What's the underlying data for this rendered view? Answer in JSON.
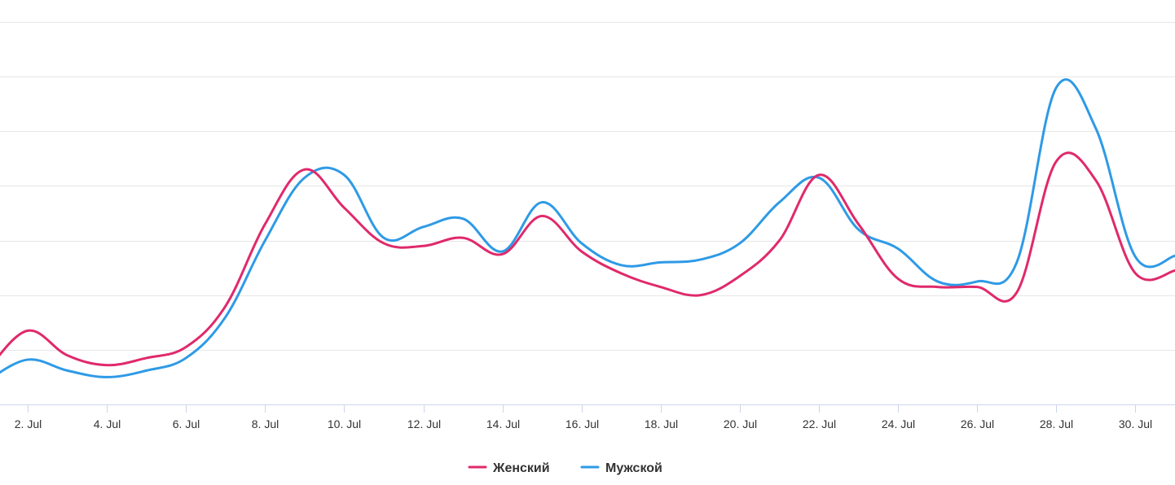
{
  "chart_data": {
    "type": "line",
    "x": [
      1,
      2,
      3,
      4,
      5,
      6,
      7,
      8,
      9,
      10,
      11,
      12,
      13,
      14,
      15,
      16,
      17,
      18,
      19,
      20,
      21,
      22,
      23,
      24,
      25,
      26,
      27,
      28,
      29,
      30,
      31
    ],
    "x_tick_labels": [
      "2. Jul",
      "4. Jul",
      "6. Jul",
      "8. Jul",
      "10. Jul",
      "12. Jul",
      "14. Jul",
      "16. Jul",
      "18. Jul",
      "20. Jul",
      "22. Jul",
      "24. Jul",
      "26. Jul",
      "28. Jul",
      "30. Jul"
    ],
    "x_tick_days": [
      2,
      4,
      6,
      8,
      10,
      12,
      14,
      16,
      18,
      20,
      22,
      24,
      26,
      28,
      30
    ],
    "xlim": [
      1.3,
      31.0
    ],
    "ylim": [
      0,
      7
    ],
    "grid_y": [
      0,
      1,
      2,
      3,
      4,
      5,
      6,
      7
    ],
    "series": [
      {
        "name": "Женский",
        "color": "#e0296b",
        "values": [
          0.65,
          1.35,
          0.9,
          0.72,
          0.85,
          1.05,
          1.8,
          3.3,
          4.3,
          3.6,
          2.95,
          2.9,
          3.05,
          2.75,
          3.45,
          2.8,
          2.4,
          2.15,
          2.0,
          2.35,
          3.0,
          4.2,
          3.3,
          2.3,
          2.15,
          2.15,
          2.05,
          4.45,
          4.1,
          2.4,
          2.45
        ]
      },
      {
        "name": "Мужской",
        "color": "#2e9ae6",
        "values": [
          0.45,
          0.82,
          0.62,
          0.5,
          0.62,
          0.85,
          1.6,
          3.0,
          4.15,
          4.2,
          3.05,
          3.25,
          3.4,
          2.8,
          3.7,
          2.95,
          2.55,
          2.6,
          2.65,
          2.95,
          3.7,
          4.15,
          3.2,
          2.85,
          2.25,
          2.25,
          2.6,
          5.8,
          5.05,
          2.7,
          2.72
        ]
      }
    ],
    "legend": {
      "placement": "bottom-center"
    }
  }
}
